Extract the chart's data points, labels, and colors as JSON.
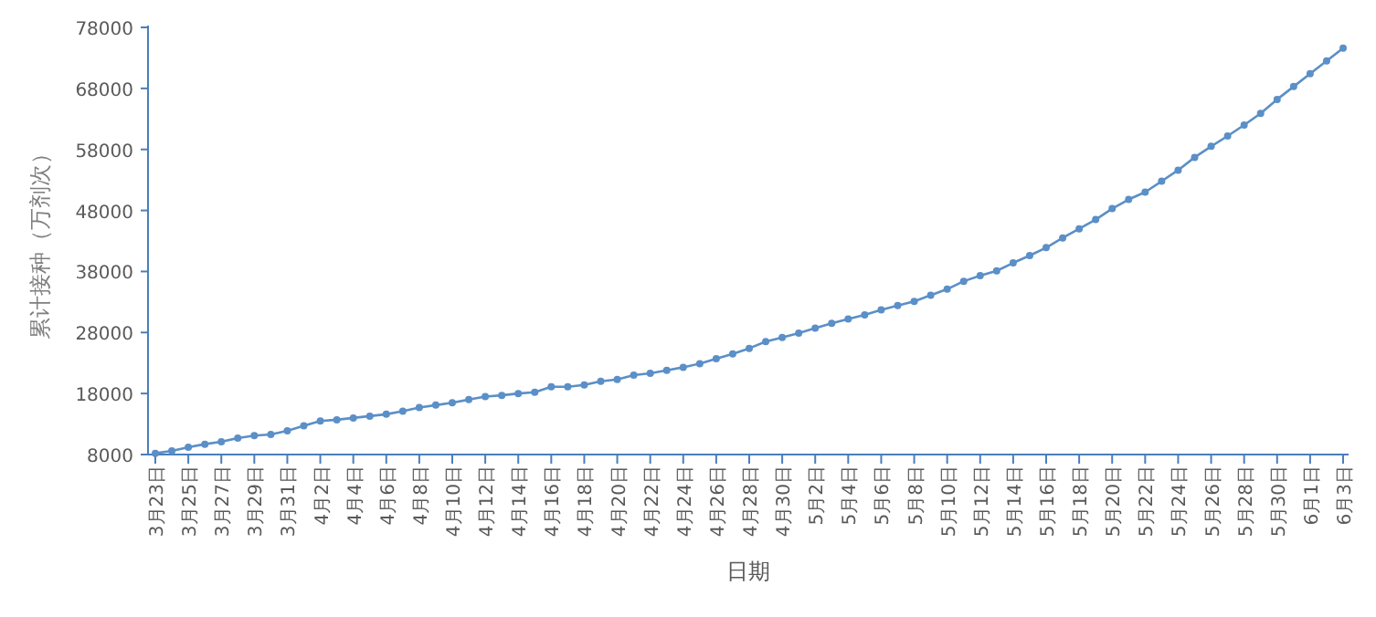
{
  "chart_data": {
    "type": "line",
    "xlabel": "日期",
    "ylabel": "累计接种（万剂次）",
    "categories": [
      "3月23日",
      null,
      "3月25日",
      null,
      "3月27日",
      null,
      "3月29日",
      null,
      "3月31日",
      null,
      "4月2日",
      null,
      "4月4日",
      null,
      "4月6日",
      null,
      "4月8日",
      null,
      "4月10日",
      null,
      "4月12日",
      null,
      "4月14日",
      null,
      "4月16日",
      null,
      "4月18日",
      null,
      "4月20日",
      null,
      "4月22日",
      null,
      "4月24日",
      null,
      "4月26日",
      null,
      "4月28日",
      null,
      "4月30日",
      null,
      "5月2日",
      null,
      "5月4日",
      null,
      "5月6日",
      null,
      "5月8日",
      null,
      "5月10日",
      null,
      "5月12日",
      null,
      "5月14日",
      null,
      "5月16日",
      null,
      "5月18日",
      null,
      "5月20日",
      null,
      "5月22日",
      null,
      "5月24日",
      null,
      "5月26日",
      null,
      "5月28日",
      null,
      "5月30日",
      null,
      "6月1日",
      null,
      "6月3日"
    ],
    "series": [
      {
        "color": "#5b8fc7",
        "values": [
          8200,
          8600,
          9200,
          9700,
          10100,
          10700,
          11100,
          11300,
          11900,
          12700,
          13500,
          13700,
          14000,
          14300,
          14600,
          15100,
          15700,
          16100,
          16500,
          17000,
          17500,
          17700,
          18000,
          18200,
          19100,
          19100,
          19400,
          20000,
          20300,
          21000,
          21300,
          21800,
          22300,
          22900,
          23700,
          24500,
          25400,
          26500,
          27200,
          27900,
          28700,
          29500,
          30200,
          30900,
          31700,
          32400,
          33100,
          34100,
          35100,
          36400,
          37300,
          38100,
          39400,
          40600,
          41900,
          43500,
          45000,
          46500,
          48300,
          49800,
          51000,
          52800,
          54600,
          56700,
          58500,
          60200,
          62000,
          63900,
          66200,
          68300,
          70400,
          72500,
          74600
        ]
      }
    ],
    "ylim": [
      8000,
      78000
    ],
    "yticks": [
      8000,
      18000,
      28000,
      38000,
      48000,
      58000,
      68000,
      78000
    ],
    "marker": "circle",
    "line_style": "solid"
  }
}
